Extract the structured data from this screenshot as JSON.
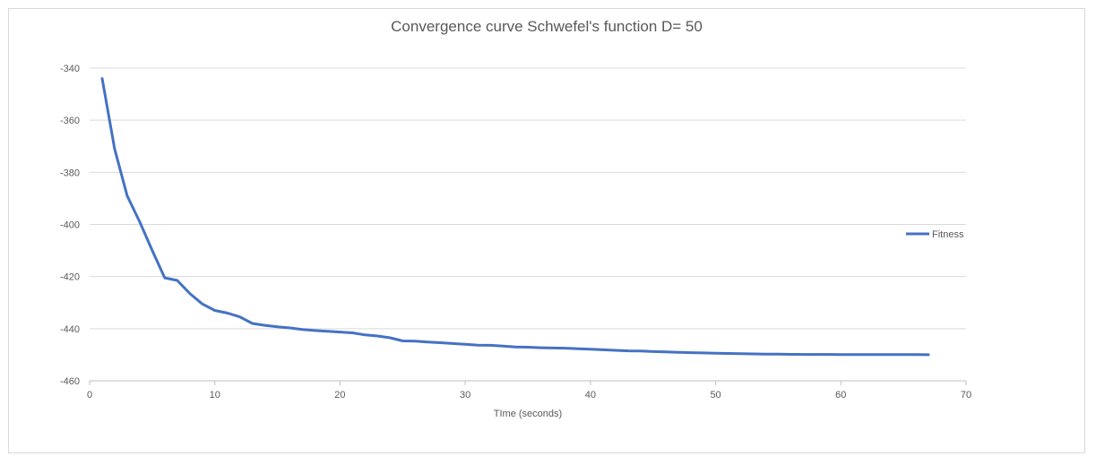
{
  "chart_data": {
    "type": "line",
    "title": "Convergence curve Schwefel's function D= 50",
    "xlabel": "TIme (seconds)",
    "ylabel": "",
    "xlim": [
      0,
      70
    ],
    "ylim": [
      -460,
      -340
    ],
    "xticks": [
      0,
      10,
      20,
      30,
      40,
      50,
      60,
      70
    ],
    "yticks": [
      -340,
      -360,
      -380,
      -400,
      -420,
      -440,
      -460
    ],
    "grid": true,
    "legend_position": "right",
    "series": [
      {
        "name": "Fitness",
        "color": "#4472c4",
        "x": [
          1,
          2,
          3,
          4,
          5,
          6,
          7,
          8,
          9,
          10,
          11,
          12,
          13,
          14,
          15,
          16,
          17,
          18,
          19,
          20,
          21,
          22,
          23,
          24,
          25,
          26,
          27,
          28,
          29,
          30,
          31,
          32,
          33,
          34,
          35,
          36,
          37,
          38,
          39,
          40,
          41,
          42,
          43,
          44,
          45,
          46,
          47,
          48,
          49,
          50,
          51,
          52,
          53,
          54,
          55,
          56,
          57,
          58,
          59,
          60,
          61,
          62,
          63,
          64,
          65,
          66,
          67
        ],
        "y": [
          -344,
          -371,
          -389,
          -399,
          -410,
          -420.5,
          -421.5,
          -426.5,
          -430.5,
          -433,
          -434,
          -435.5,
          -438,
          -438.7,
          -439.3,
          -439.7,
          -440.3,
          -440.7,
          -441,
          -441.3,
          -441.6,
          -442.4,
          -442.8,
          -443.5,
          -444.7,
          -444.8,
          -445.1,
          -445.4,
          -445.7,
          -446,
          -446.3,
          -446.4,
          -446.7,
          -447,
          -447.1,
          -447.3,
          -447.4,
          -447.5,
          -447.7,
          -447.9,
          -448.1,
          -448.3,
          -448.5,
          -448.6,
          -448.8,
          -448.9,
          -449.1,
          -449.2,
          -449.3,
          -449.4,
          -449.5,
          -449.6,
          -449.7,
          -449.8,
          -449.8,
          -449.85,
          -449.9,
          -449.9,
          -449.9,
          -449.95,
          -449.95,
          -449.95,
          -449.95,
          -449.95,
          -449.95,
          -449.95,
          -450
        ]
      }
    ]
  }
}
